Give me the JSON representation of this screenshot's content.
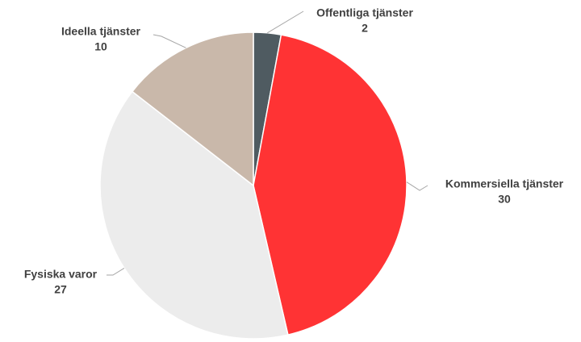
{
  "chart_data": {
    "type": "pie",
    "categories": [
      "Offentliga tjänster",
      "Kommersiella tjänster",
      "Fysiska varor",
      "Ideella tjänster"
    ],
    "values": [
      2,
      30,
      27,
      10
    ],
    "colors": [
      "#4f5b61",
      "#ff3334",
      "#ececec",
      "#c9b8aa"
    ]
  }
}
